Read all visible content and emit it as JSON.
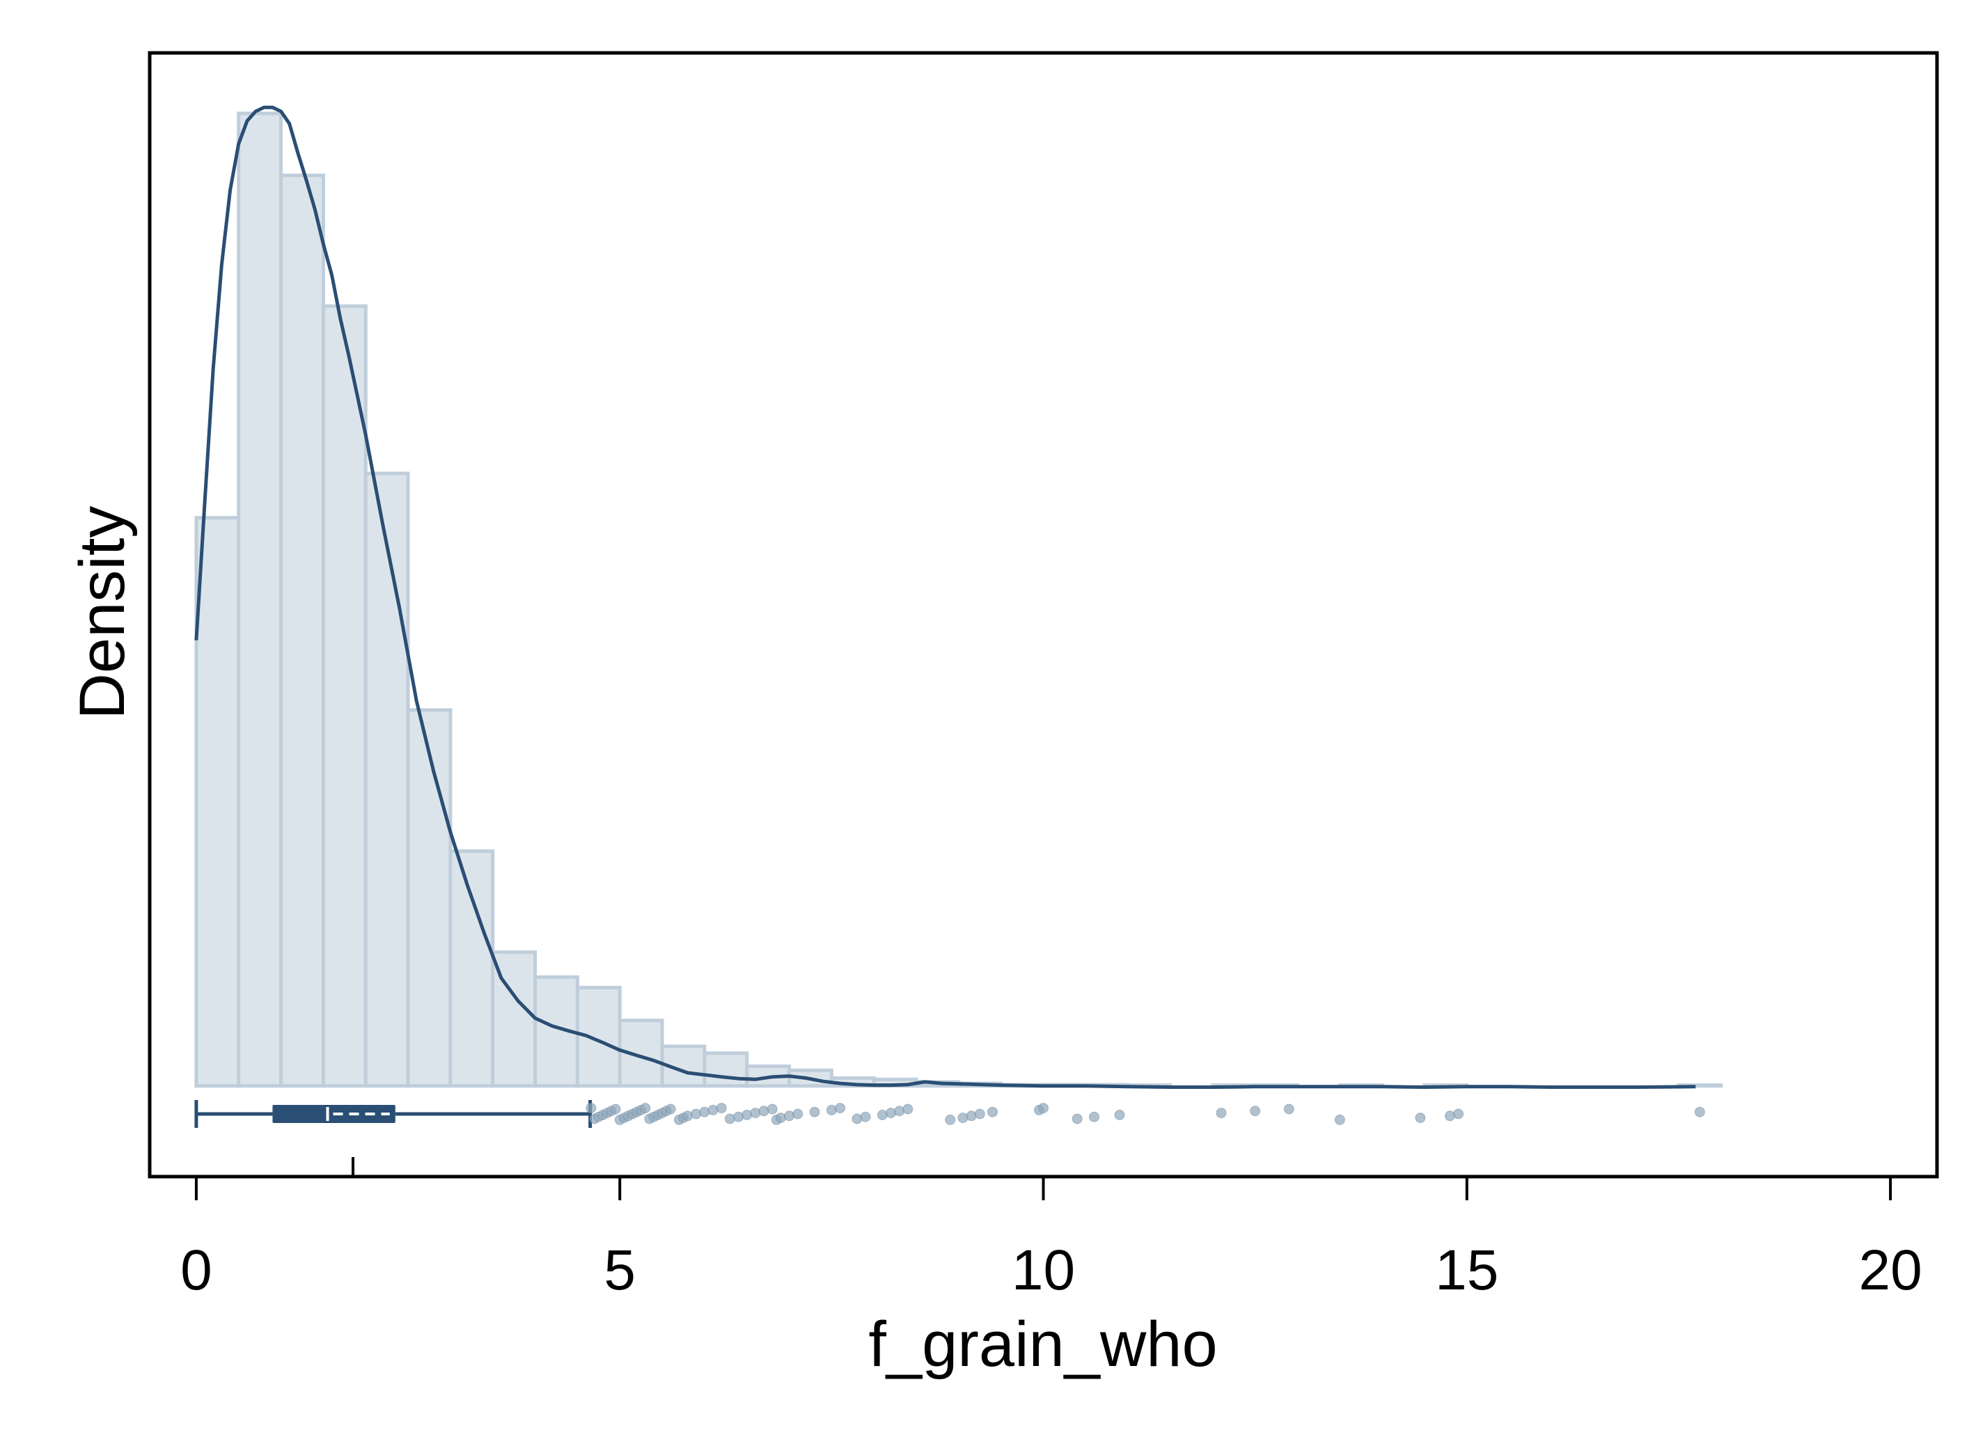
{
  "chart_data": {
    "type": "histogram",
    "xlabel": "f_grain_who",
    "ylabel": "Density",
    "xlim": [
      -0.55,
      20.55
    ],
    "ylim": [
      -0.036,
      0.41
    ],
    "xticks": [
      0,
      5,
      10,
      15,
      20
    ],
    "grid": false,
    "legend": "none",
    "histogram": {
      "bin_width": 0.5,
      "bins": [
        {
          "x0": 0.0,
          "density": 0.2255
        },
        {
          "x0": 0.5,
          "density": 0.386
        },
        {
          "x0": 1.0,
          "density": 0.3614
        },
        {
          "x0": 1.5,
          "density": 0.3095
        },
        {
          "x0": 2.0,
          "density": 0.2431
        },
        {
          "x0": 2.5,
          "density": 0.1492
        },
        {
          "x0": 3.0,
          "density": 0.0932
        },
        {
          "x0": 3.5,
          "density": 0.0531
        },
        {
          "x0": 4.0,
          "density": 0.0432
        },
        {
          "x0": 4.5,
          "density": 0.039
        },
        {
          "x0": 5.0,
          "density": 0.026
        },
        {
          "x0": 5.5,
          "density": 0.0157
        },
        {
          "x0": 6.0,
          "density": 0.013
        },
        {
          "x0": 6.5,
          "density": 0.0078
        },
        {
          "x0": 7.0,
          "density": 0.0062
        },
        {
          "x0": 7.5,
          "density": 0.0031
        },
        {
          "x0": 8.0,
          "density": 0.0026
        },
        {
          "x0": 8.5,
          "density": 0.0016
        },
        {
          "x0": 9.0,
          "density": 0.001
        },
        {
          "x0": 9.5,
          "density": 0.0005
        },
        {
          "x0": 10.0,
          "density": 0.0005
        },
        {
          "x0": 10.5,
          "density": 0.0005
        },
        {
          "x0": 11.0,
          "density": 0.0003
        },
        {
          "x0": 11.5,
          "density": 0.0
        },
        {
          "x0": 12.0,
          "density": 0.0003
        },
        {
          "x0": 12.5,
          "density": 0.0003
        },
        {
          "x0": 13.0,
          "density": 0.0
        },
        {
          "x0": 13.5,
          "density": 0.0003
        },
        {
          "x0": 14.0,
          "density": 0.0
        },
        {
          "x0": 14.5,
          "density": 0.0003
        },
        {
          "x0": 15.0,
          "density": 0.0
        },
        {
          "x0": 17.5,
          "density": 0.0003
        }
      ]
    },
    "kde": {
      "x": [
        0.0,
        0.1,
        0.2,
        0.3,
        0.4,
        0.5,
        0.6,
        0.7,
        0.8,
        0.9,
        1.0,
        1.1,
        1.2,
        1.3,
        1.4,
        1.5,
        1.6,
        1.7,
        1.8,
        2.0,
        2.2,
        2.4,
        2.6,
        2.8,
        3.0,
        3.2,
        3.4,
        3.6,
        3.8,
        4.0,
        4.2,
        4.4,
        4.6,
        4.8,
        5.0,
        5.2,
        5.4,
        5.6,
        5.8,
        6.0,
        6.2,
        6.4,
        6.6,
        6.8,
        7.0,
        7.2,
        7.4,
        7.6,
        7.8,
        8.0,
        8.2,
        8.4,
        8.6,
        8.8,
        9.0,
        9.5,
        10.0,
        10.5,
        11.0,
        11.5,
        12.0,
        12.5,
        13.0,
        13.5,
        14.0,
        14.5,
        15.0,
        15.5,
        16.0,
        16.5,
        17.0,
        17.7
      ],
      "y": [
        0.1769,
        0.2318,
        0.2847,
        0.326,
        0.3556,
        0.3739,
        0.383,
        0.3868,
        0.3884,
        0.3884,
        0.3868,
        0.3819,
        0.3702,
        0.3594,
        0.348,
        0.3341,
        0.3218,
        0.3047,
        0.2899,
        0.2584,
        0.223,
        0.1894,
        0.1528,
        0.125,
        0.1007,
        0.0797,
        0.0605,
        0.0428,
        0.0337,
        0.0269,
        0.0238,
        0.0218,
        0.02,
        0.0172,
        0.0142,
        0.0121,
        0.0101,
        0.0076,
        0.0052,
        0.0044,
        0.0036,
        0.0029,
        0.0026,
        0.0036,
        0.0039,
        0.0031,
        0.0018,
        0.001,
        0.0005,
        0.0003,
        0.0003,
        0.0005,
        0.0016,
        0.001,
        0.0008,
        0.0003,
        0.0,
        0.0,
        -0.0003,
        -0.0005,
        -0.0005,
        -0.0003,
        -0.0003,
        -0.0003,
        -0.0003,
        -0.0005,
        -0.0003,
        -0.0003,
        -0.0005,
        -0.0005,
        -0.0005,
        -0.0003
      ]
    },
    "boxplot": {
      "min": 0.0,
      "q1": 0.9,
      "median": 1.55,
      "mean": 1.85,
      "q3": 2.35,
      "whisker_high": 4.65,
      "outliers": [
        4.66,
        4.7,
        4.75,
        4.8,
        4.85,
        4.9,
        4.95,
        5.0,
        5.05,
        5.1,
        5.15,
        5.2,
        5.25,
        5.3,
        5.35,
        5.4,
        5.45,
        5.5,
        5.55,
        5.6,
        5.7,
        5.75,
        5.8,
        5.9,
        6.0,
        6.1,
        6.2,
        6.3,
        6.4,
        6.5,
        6.6,
        6.7,
        6.8,
        6.85,
        6.9,
        7.0,
        7.1,
        7.3,
        7.5,
        7.6,
        7.8,
        7.9,
        8.1,
        8.2,
        8.3,
        8.4,
        8.9,
        9.05,
        9.15,
        9.25,
        9.4,
        9.95,
        10.0,
        10.4,
        10.6,
        10.9,
        12.1,
        12.5,
        12.9,
        13.5,
        14.45,
        14.8,
        14.9,
        17.75
      ]
    },
    "colors": {
      "bar_fill": "#dce4eb",
      "bar_stroke": "#c0cedb",
      "line": "#2a4e74",
      "box": "#2a4e74",
      "outlier": "#8fa6bb"
    }
  }
}
